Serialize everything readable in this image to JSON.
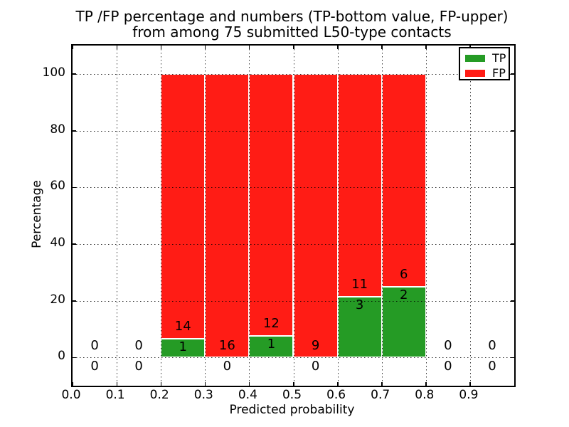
{
  "chart_data": {
    "type": "bar",
    "stacked": true,
    "title_lines": [
      "TP /FP percentage and numbers (TP-bottom value, FP-upper)",
      "from among 75 submitted L50-type contacts"
    ],
    "xlabel": "Predicted probability",
    "ylabel": "Percentage",
    "xlim": [
      0.0,
      1.0
    ],
    "ylim": [
      -10,
      110
    ],
    "x_ticks": [
      "0.0",
      "0.1",
      "0.2",
      "0.3",
      "0.4",
      "0.5",
      "0.6",
      "0.7",
      "0.8",
      "0.9"
    ],
    "y_ticks": [
      "0",
      "20",
      "40",
      "60",
      "80",
      "100"
    ],
    "grid": true,
    "legend_position": "upper right",
    "legend": [
      {
        "label": "TP",
        "color": "#259b25"
      },
      {
        "label": "FP",
        "color": "#ff1c15"
      }
    ],
    "bins": [
      {
        "range": [
          0.0,
          0.1
        ],
        "tp_count": 0,
        "fp_count": 0,
        "tp_pct": 0,
        "fp_pct": 0
      },
      {
        "range": [
          0.1,
          0.2
        ],
        "tp_count": 0,
        "fp_count": 0,
        "tp_pct": 0,
        "fp_pct": 0
      },
      {
        "range": [
          0.2,
          0.3
        ],
        "tp_count": 1,
        "fp_count": 14,
        "tp_pct": 6.67,
        "fp_pct": 93.33
      },
      {
        "range": [
          0.3,
          0.4
        ],
        "tp_count": 0,
        "fp_count": 16,
        "tp_pct": 0,
        "fp_pct": 100
      },
      {
        "range": [
          0.4,
          0.5
        ],
        "tp_count": 1,
        "fp_count": 12,
        "tp_pct": 7.69,
        "fp_pct": 92.31
      },
      {
        "range": [
          0.5,
          0.6
        ],
        "tp_count": 0,
        "fp_count": 9,
        "tp_pct": 0,
        "fp_pct": 100
      },
      {
        "range": [
          0.6,
          0.7
        ],
        "tp_count": 3,
        "fp_count": 11,
        "tp_pct": 21.43,
        "fp_pct": 78.57
      },
      {
        "range": [
          0.7,
          0.8
        ],
        "tp_count": 2,
        "fp_count": 6,
        "tp_pct": 25.0,
        "fp_pct": 75.0
      },
      {
        "range": [
          0.8,
          0.9
        ],
        "tp_count": 0,
        "fp_count": 0,
        "tp_pct": 0,
        "fp_pct": 0
      },
      {
        "range": [
          0.9,
          1.0
        ],
        "tp_count": 0,
        "fp_count": 0,
        "tp_pct": 0,
        "fp_pct": 0
      }
    ]
  }
}
